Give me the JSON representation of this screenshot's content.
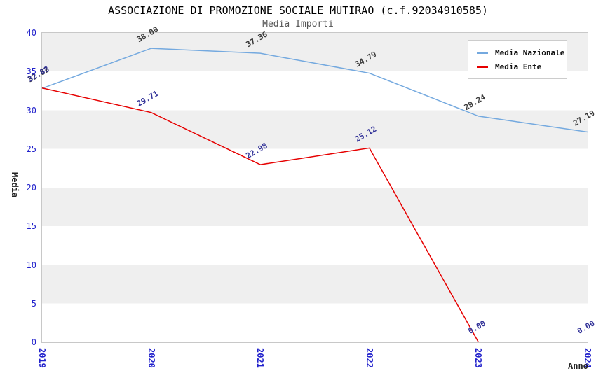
{
  "chart_data": {
    "type": "line",
    "title": "ASSOCIAZIONE DI PROMOZIONE SOCIALE MUTIRAO (c.f.92034910585)",
    "subtitle": "Media Importi",
    "xlabel": "Anno",
    "ylabel": "Media",
    "x": [
      2019,
      2020,
      2021,
      2022,
      2023,
      2024
    ],
    "series": [
      {
        "name": "Media Nazionale",
        "color": "#74a9df",
        "label_color": "#3a3a3a",
        "values": [
          32.82,
          38.0,
          37.36,
          34.79,
          29.24,
          27.19
        ]
      },
      {
        "name": "Media Ente",
        "color": "#e60000",
        "label_color": "#333399",
        "values": [
          32.88,
          29.71,
          22.98,
          25.12,
          0.0,
          0.0
        ]
      }
    ],
    "ylim": [
      0,
      40
    ],
    "ytick_step": 5,
    "tick_color": "#2222cc",
    "grid": "alternating-bands",
    "legend_position": "top-right",
    "value_label_decimals": 2
  }
}
